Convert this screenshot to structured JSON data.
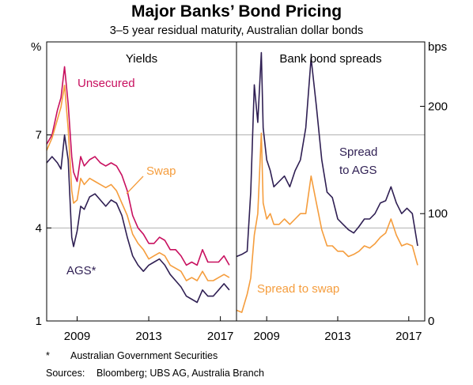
{
  "title": "Major Banks’ Bond Pricing",
  "subtitle": "3–5 year residual maturity, Australian dollar bonds",
  "left_unit": "%",
  "right_unit": "bps",
  "footnote_marker": "*",
  "footnote_text": "Australian Government Securities",
  "sources_label": "Sources:",
  "sources_text": "Bloomberg; UBS AG, Australia Branch",
  "colors": {
    "unsecured": "#c8105f",
    "swap": "#f59d3d",
    "ags": "#2f1f53",
    "grid": "#b0b0b0"
  },
  "chart_data": [
    {
      "type": "line",
      "title": "Yields",
      "unit": "%",
      "ylim": [
        1,
        10
      ],
      "yticks": [
        1,
        4,
        7
      ],
      "xlim": [
        2007.3,
        2017.9
      ],
      "xticks": [
        2009,
        2013,
        2017
      ],
      "series": [
        {
          "name": "Unsecured",
          "label": "Unsecured",
          "color": "#c8105f",
          "x": [
            2007.3,
            2007.6,
            2007.9,
            2008.1,
            2008.3,
            2008.5,
            2008.7,
            2008.8,
            2009.0,
            2009.2,
            2009.4,
            2009.7,
            2010.0,
            2010.3,
            2010.6,
            2010.9,
            2011.2,
            2011.5,
            2011.8,
            2012.1,
            2012.4,
            2012.7,
            2013.0,
            2013.3,
            2013.6,
            2013.9,
            2014.2,
            2014.5,
            2014.8,
            2015.1,
            2015.4,
            2015.7,
            2016.0,
            2016.3,
            2016.6,
            2016.9,
            2017.2,
            2017.5
          ],
          "y": [
            6.7,
            7.0,
            7.8,
            8.2,
            9.2,
            8.0,
            6.3,
            5.8,
            5.5,
            6.3,
            6.0,
            6.2,
            6.3,
            6.1,
            6.0,
            6.1,
            6.0,
            5.7,
            5.2,
            4.4,
            4.0,
            3.8,
            3.5,
            3.5,
            3.7,
            3.6,
            3.3,
            3.3,
            3.1,
            2.8,
            2.9,
            2.8,
            3.3,
            2.9,
            2.9,
            2.9,
            3.1,
            2.8
          ]
        },
        {
          "name": "Swap",
          "label": "Swap",
          "color": "#f59d3d",
          "x": [
            2007.3,
            2007.6,
            2007.9,
            2008.1,
            2008.3,
            2008.5,
            2008.7,
            2008.8,
            2009.0,
            2009.2,
            2009.4,
            2009.7,
            2010.0,
            2010.3,
            2010.6,
            2010.9,
            2011.2,
            2011.5,
            2011.8,
            2012.1,
            2012.4,
            2012.7,
            2013.0,
            2013.3,
            2013.6,
            2013.9,
            2014.2,
            2014.5,
            2014.8,
            2015.1,
            2015.4,
            2015.7,
            2016.0,
            2016.3,
            2016.6,
            2016.9,
            2017.2,
            2017.5
          ],
          "y": [
            6.5,
            6.9,
            7.5,
            7.9,
            8.6,
            7.2,
            5.2,
            4.8,
            4.9,
            5.6,
            5.4,
            5.6,
            5.5,
            5.4,
            5.3,
            5.4,
            5.2,
            4.8,
            4.4,
            3.8,
            3.5,
            3.3,
            3.0,
            3.1,
            3.2,
            3.1,
            2.8,
            2.7,
            2.6,
            2.3,
            2.4,
            2.3,
            2.6,
            2.3,
            2.3,
            2.4,
            2.5,
            2.4
          ]
        },
        {
          "name": "AGS*",
          "label": "AGS*",
          "color": "#2f1f53",
          "x": [
            2007.3,
            2007.6,
            2007.9,
            2008.1,
            2008.3,
            2008.5,
            2008.7,
            2008.8,
            2009.0,
            2009.2,
            2009.4,
            2009.7,
            2010.0,
            2010.3,
            2010.6,
            2010.9,
            2011.2,
            2011.5,
            2011.8,
            2012.1,
            2012.4,
            2012.7,
            2013.0,
            2013.3,
            2013.6,
            2013.9,
            2014.2,
            2014.5,
            2014.8,
            2015.1,
            2015.4,
            2015.7,
            2016.0,
            2016.3,
            2016.6,
            2016.9,
            2017.2,
            2017.5
          ],
          "y": [
            6.1,
            6.3,
            6.1,
            5.9,
            7.0,
            6.2,
            3.7,
            3.4,
            3.9,
            4.7,
            4.6,
            5.0,
            5.1,
            4.9,
            4.7,
            4.9,
            4.8,
            4.4,
            3.7,
            3.1,
            2.8,
            2.6,
            2.8,
            2.9,
            3.0,
            2.8,
            2.5,
            2.3,
            2.1,
            1.8,
            1.7,
            1.6,
            2.0,
            1.8,
            1.8,
            2.0,
            2.2,
            2.0
          ]
        }
      ]
    },
    {
      "type": "line",
      "title": "Bank bond spreads",
      "unit": "bps",
      "ylim": [
        0,
        260
      ],
      "yticks": [
        0,
        100,
        200
      ],
      "xlim": [
        2007.3,
        2017.9
      ],
      "xticks": [
        2009,
        2013,
        2017
      ],
      "series": [
        {
          "name": "Spread to AGS",
          "label": "Spread to AGS",
          "color": "#2f1f53",
          "x": [
            2007.3,
            2007.6,
            2007.9,
            2008.1,
            2008.3,
            2008.5,
            2008.7,
            2008.8,
            2009.0,
            2009.2,
            2009.4,
            2009.7,
            2010.0,
            2010.3,
            2010.6,
            2010.9,
            2011.2,
            2011.5,
            2011.8,
            2012.1,
            2012.4,
            2012.7,
            2013.0,
            2013.3,
            2013.6,
            2013.9,
            2014.2,
            2014.5,
            2014.8,
            2015.1,
            2015.4,
            2015.7,
            2016.0,
            2016.3,
            2016.6,
            2016.9,
            2017.2,
            2017.5
          ],
          "y": [
            60,
            62,
            65,
            120,
            220,
            185,
            250,
            180,
            150,
            140,
            125,
            130,
            135,
            125,
            140,
            150,
            180,
            245,
            200,
            150,
            120,
            115,
            95,
            90,
            85,
            82,
            88,
            95,
            95,
            100,
            110,
            112,
            125,
            110,
            100,
            105,
            100,
            70
          ]
        },
        {
          "name": "Spread to swap",
          "label": "Spread to swap",
          "color": "#f59d3d",
          "x": [
            2007.3,
            2007.6,
            2007.9,
            2008.1,
            2008.3,
            2008.5,
            2008.7,
            2008.8,
            2009.0,
            2009.2,
            2009.4,
            2009.7,
            2010.0,
            2010.3,
            2010.6,
            2010.9,
            2011.2,
            2011.5,
            2011.8,
            2012.1,
            2012.4,
            2012.7,
            2013.0,
            2013.3,
            2013.6,
            2013.9,
            2014.2,
            2014.5,
            2014.8,
            2015.1,
            2015.4,
            2015.7,
            2016.0,
            2016.3,
            2016.6,
            2016.9,
            2017.2,
            2017.5
          ],
          "y": [
            10,
            8,
            25,
            40,
            80,
            100,
            175,
            110,
            95,
            100,
            90,
            90,
            95,
            90,
            95,
            100,
            100,
            135,
            110,
            85,
            70,
            70,
            65,
            65,
            60,
            62,
            65,
            70,
            68,
            72,
            78,
            82,
            95,
            80,
            70,
            72,
            70,
            52
          ]
        }
      ]
    }
  ]
}
